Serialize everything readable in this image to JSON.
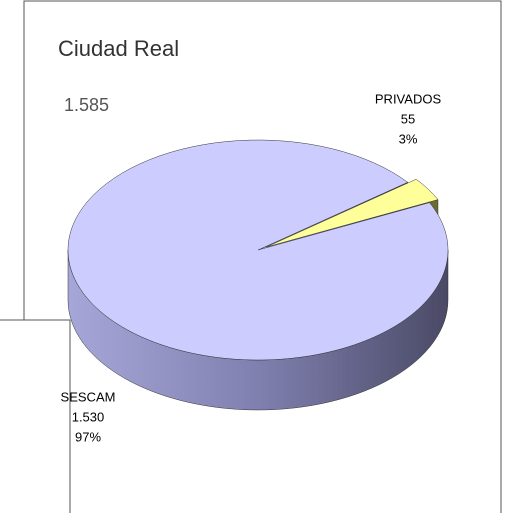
{
  "chart_data": {
    "type": "pie",
    "title": "Ciudad Real",
    "subtitle": "1.585",
    "categories": [
      "PRIVADOS",
      "SESCAM"
    ],
    "values": [
      55,
      1530
    ],
    "value_labels": [
      "55",
      "1.530"
    ],
    "percents": [
      3,
      97
    ],
    "percent_labels": [
      "3%",
      "97%"
    ],
    "colors": [
      "#ffff99",
      "#ccccff"
    ]
  }
}
